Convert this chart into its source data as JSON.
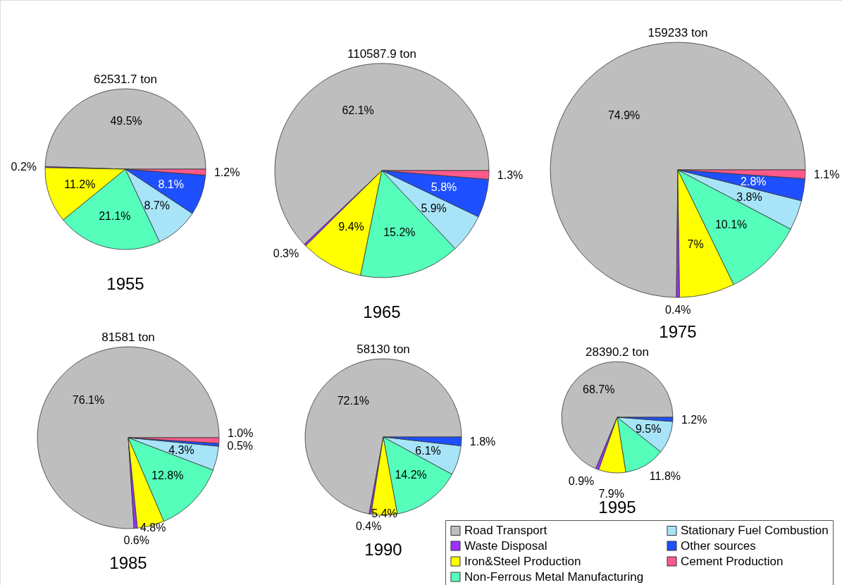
{
  "chart_data": [
    {
      "type": "pie",
      "title": "1955",
      "subtitle": "62531.7 ton",
      "categories": [
        "Road Transport",
        "Waste Disposal",
        "Iron&Steel Production",
        "Non-Ferrous Metal Manufacturing",
        "Stationary Fuel Combustion",
        "Other sources",
        "Cement Production"
      ],
      "colors": [
        "#bebebe",
        "#9b30ff",
        "#ffff00",
        "#55ffbb",
        "#a8e4f8",
        "#1e50ff",
        "#ff5a8a"
      ],
      "values": [
        49.5,
        0.2,
        11.2,
        21.1,
        8.7,
        8.1,
        1.2
      ],
      "value_labels": [
        "49.5%",
        "0.2%",
        "11.2%",
        "21.1%",
        "8.7%",
        "8.1%",
        "1.2%"
      ],
      "legend": "bottom right"
    },
    {
      "type": "pie",
      "title": "1965",
      "subtitle": "110587.9 ton",
      "categories": [
        null,
        null,
        null,
        null,
        null,
        null,
        null
      ],
      "colors": [
        "#bebebe",
        "#9b30ff",
        "#ffff00",
        "#55ffbb",
        "#a8e4f8",
        "#1e50ff",
        "#ff5a8a"
      ],
      "values": [
        62.1,
        0.3,
        9.4,
        15.2,
        5.9,
        5.8,
        1.3
      ],
      "value_labels": [
        "62.1%",
        "0.3%",
        "9.4%",
        "15.2%",
        "5.9%",
        "5.8%",
        "1.3%"
      ]
    },
    {
      "type": "pie",
      "title": "1975",
      "subtitle": "159233 ton",
      "categories": [
        null,
        null,
        null,
        null,
        null,
        null,
        null
      ],
      "colors": [
        "#bebebe",
        "#9b30ff",
        "#ffff00",
        "#55ffbb",
        "#a8e4f8",
        "#1e50ff",
        "#ff5a8a"
      ],
      "values": [
        74.9,
        0.4,
        7,
        10.1,
        3.8,
        2.8,
        1.1
      ],
      "value_labels": [
        "74.9%",
        "0.4%",
        "7%",
        "10.1%",
        "3.8%",
        "2.8%",
        "1.1%"
      ]
    },
    {
      "type": "pie",
      "title": "1985",
      "subtitle": "81581 ton",
      "categories": [
        null,
        null,
        null,
        null,
        null,
        null,
        null
      ],
      "colors": [
        "#bebebe",
        "#9b30ff",
        "#ffff00",
        "#55ffbb",
        "#a8e4f8",
        "#1e50ff",
        "#ff5a8a"
      ],
      "values": [
        76.1,
        0.6,
        4.8,
        12.8,
        4.3,
        0.5,
        1.0
      ],
      "value_labels": [
        "76.1%",
        "0.6%",
        "4.8%",
        "12.8%",
        "4.3%",
        "0.5%",
        "1.0%"
      ]
    },
    {
      "type": "pie",
      "title": "1990",
      "subtitle": "58130 ton",
      "categories": [
        null,
        null,
        null,
        null,
        null,
        null,
        null
      ],
      "colors": [
        "#bebebe",
        "#9b30ff",
        "#ffff00",
        "#55ffbb",
        "#a8e4f8",
        "#1e50ff",
        "#ff5a8a"
      ],
      "values": [
        72.1,
        0.4,
        5.4,
        14.2,
        6.1,
        1.8,
        null
      ],
      "value_labels": [
        "72.1%",
        "0.4%",
        "5.4%",
        "14.2%",
        "6.1%",
        "1.8%",
        null
      ]
    },
    {
      "type": "pie",
      "title": "1995",
      "subtitle": "28390.2 ton",
      "categories": [
        null,
        null,
        null,
        null,
        null,
        null,
        null
      ],
      "colors": [
        "#bebebe",
        "#9b30ff",
        "#ffff00",
        "#55ffbb",
        "#a8e4f8",
        "#1e50ff",
        "#ff5a8a"
      ],
      "values": [
        68.7,
        0.9,
        7.9,
        11.8,
        9.5,
        1.2,
        null
      ],
      "value_labels": [
        "68.7%",
        "0.9%",
        "7.9%",
        "11.8%",
        "9.5%",
        "1.2%",
        null
      ]
    }
  ]
}
